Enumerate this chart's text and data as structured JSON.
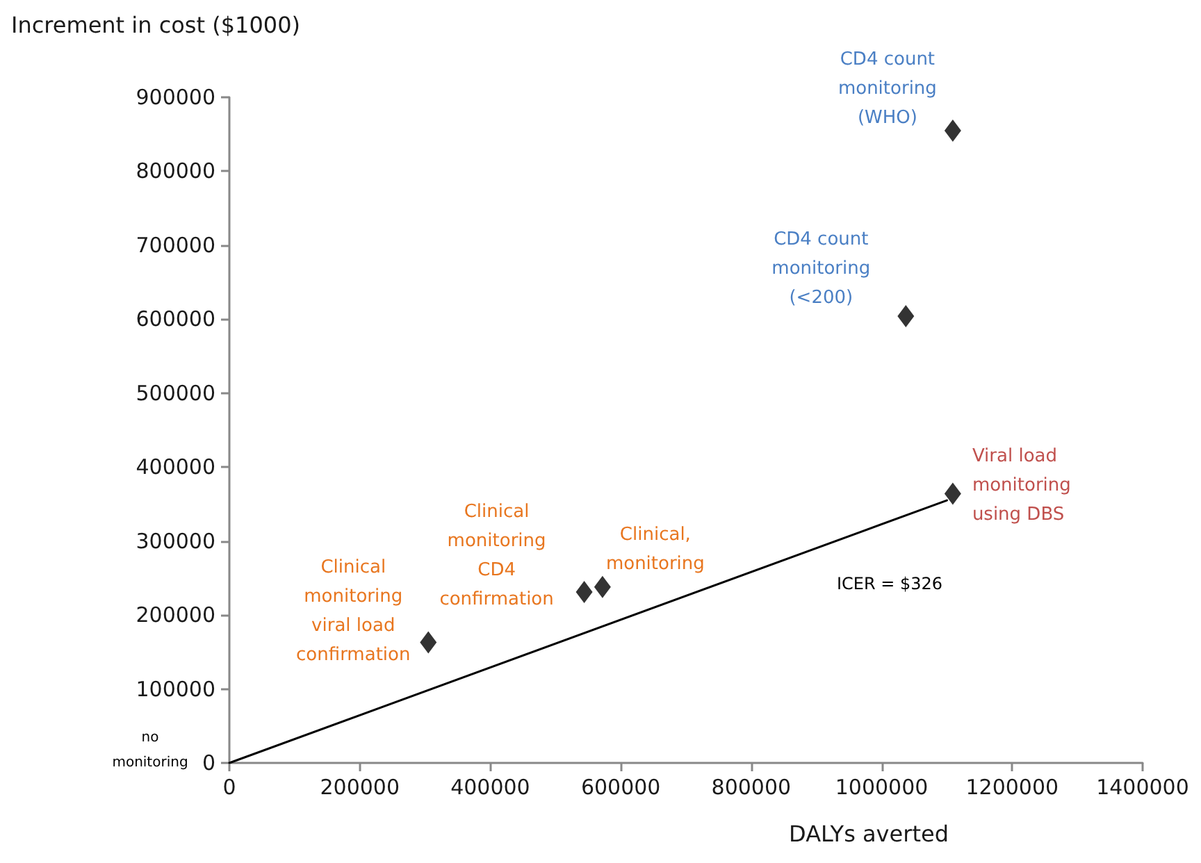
{
  "chart_data": {
    "type": "scatter",
    "xlabel": "DALYs averted",
    "ylabel": "Increment in cost ($1000)",
    "series": [
      {
        "color": "#000000",
        "marker": "diamond",
        "x": [
          305000,
          544000,
          572000,
          1109000,
          1037000,
          1109000
        ],
        "values": [
          163000,
          231000,
          238000,
          855000,
          604000,
          364000
        ]
      },
      {
        "type": "line",
        "color": "#000000",
        "marker": "none",
        "x": [
          0,
          1100000
        ],
        "values": [
          0,
          355000
        ]
      }
    ],
    "annotations": [
      {
        "text": "Clinical\nmonitoring\nviral load\nconfirmation",
        "x": 305000,
        "y": 163000
      },
      {
        "text": "Clinical\nmonitoring\nCD4\nconfirmation",
        "x": 544000,
        "y": 231000
      },
      {
        "text": "Clinical,\nmonitoring",
        "x": 572000,
        "y": 238000
      },
      {
        "text": "CD4 count\nmonitoring\n(WHO)",
        "x": 1109000,
        "y": 855000
      },
      {
        "text": "CD4 count\nmonitoring\n(<200)",
        "x": 1037000,
        "y": 604000
      },
      {
        "text": "Viral load\nmonitoring\nusing DBS",
        "x": 1109000,
        "y": 364000
      },
      "ICER = $326",
      {
        "text": "no\nmonitoring",
        "x": 0,
        "y": 0
      }
    ],
    "xlim": [
      0,
      1400000
    ],
    "xticks": [
      0,
      200000,
      400000,
      600000,
      800000,
      1000000,
      1200000,
      1400000
    ],
    "ylim": [
      0,
      900000
    ],
    "yticks": [
      0,
      100000,
      200000,
      300000,
      400000,
      500000,
      600000,
      700000,
      800000,
      900000
    ],
    "grid": false
  }
}
